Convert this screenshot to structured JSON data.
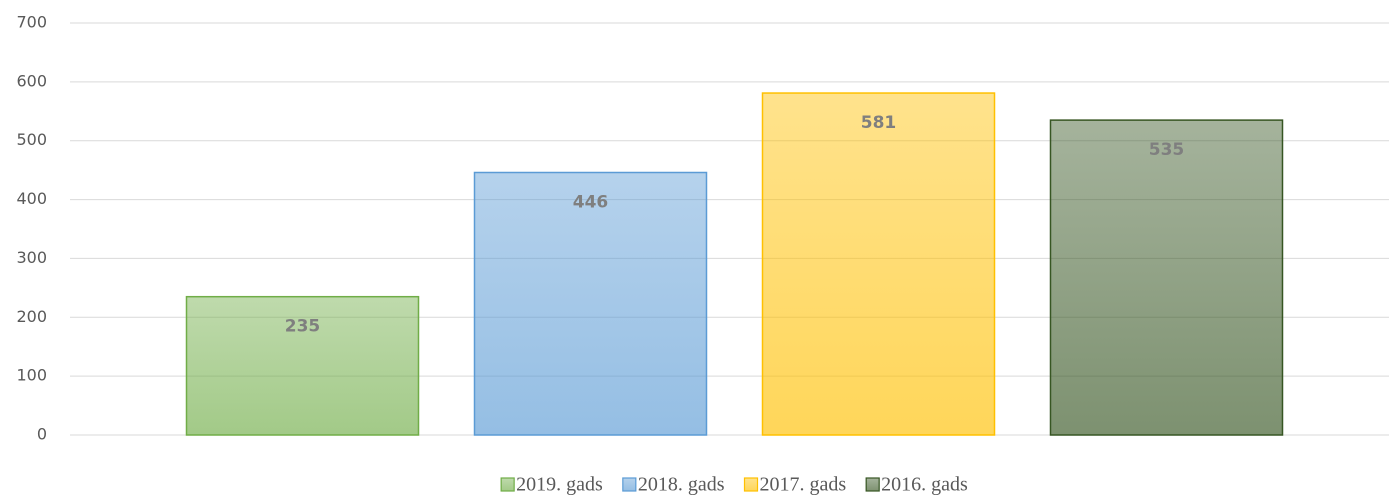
{
  "chart_data": {
    "type": "bar",
    "categories": [
      null
    ],
    "series": [
      {
        "name": "2019. gads",
        "color": "#70ad47",
        "values": [
          235
        ]
      },
      {
        "name": "2018. gads",
        "color": "#5b9bd5",
        "values": [
          446
        ]
      },
      {
        "name": "2017. gads",
        "color": "#ffc000",
        "values": [
          581
        ]
      },
      {
        "name": "2016. gads",
        "color": "#375623",
        "values": [
          535
        ]
      }
    ],
    "ylim": [
      0,
      700
    ],
    "yticks": [
      0,
      100,
      200,
      300,
      400,
      500,
      600,
      700
    ],
    "grid": true,
    "legend": "bottom"
  }
}
